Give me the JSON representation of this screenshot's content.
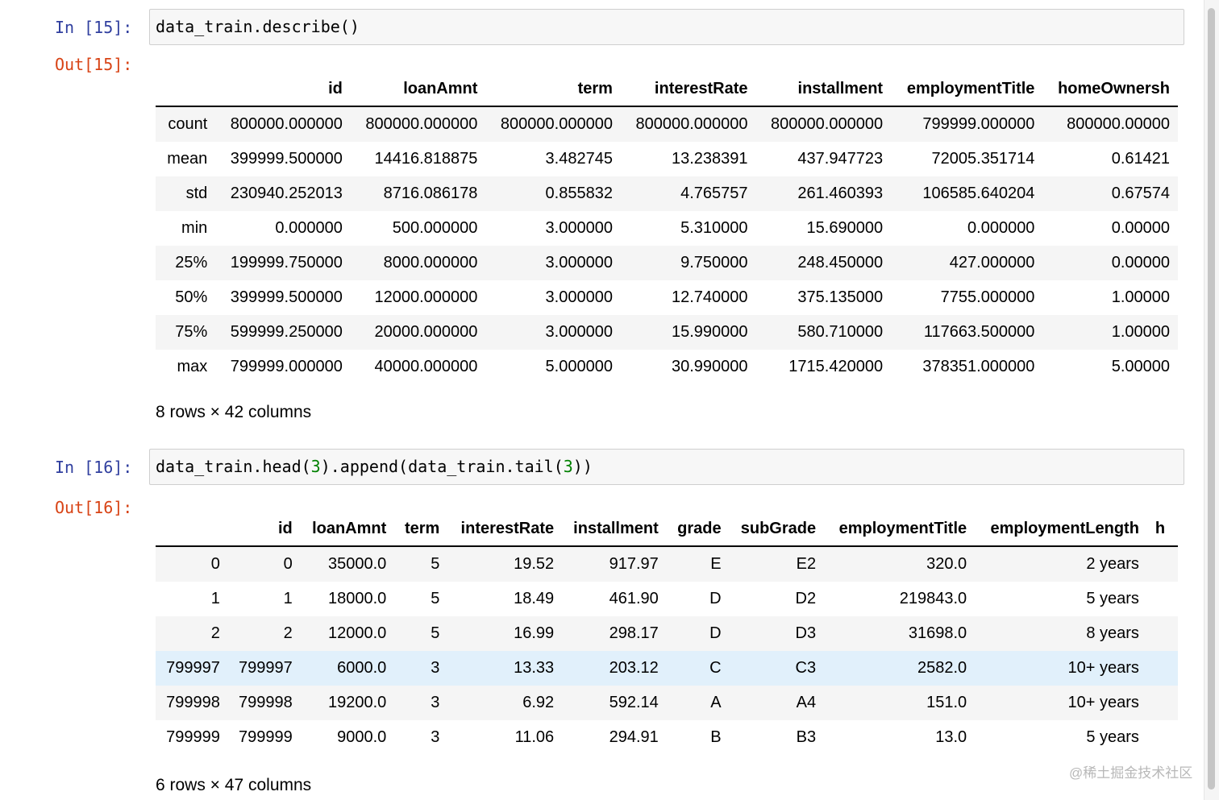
{
  "cell1": {
    "in_prompt": "In [15]:",
    "code": "data_train.describe()",
    "out_prompt": "Out[15]:",
    "columns": [
      "",
      "id",
      "loanAmnt",
      "term",
      "interestRate",
      "installment",
      "employmentTitle",
      "homeOwnersh"
    ],
    "rows": [
      [
        "count",
        "800000.000000",
        "800000.000000",
        "800000.000000",
        "800000.000000",
        "800000.000000",
        "799999.000000",
        "800000.00000"
      ],
      [
        "mean",
        "399999.500000",
        "14416.818875",
        "3.482745",
        "13.238391",
        "437.947723",
        "72005.351714",
        "0.61421"
      ],
      [
        "std",
        "230940.252013",
        "8716.086178",
        "0.855832",
        "4.765757",
        "261.460393",
        "106585.640204",
        "0.67574"
      ],
      [
        "min",
        "0.000000",
        "500.000000",
        "3.000000",
        "5.310000",
        "15.690000",
        "0.000000",
        "0.00000"
      ],
      [
        "25%",
        "199999.750000",
        "8000.000000",
        "3.000000",
        "9.750000",
        "248.450000",
        "427.000000",
        "0.00000"
      ],
      [
        "50%",
        "399999.500000",
        "12000.000000",
        "3.000000",
        "12.740000",
        "375.135000",
        "7755.000000",
        "1.00000"
      ],
      [
        "75%",
        "599999.250000",
        "20000.000000",
        "3.000000",
        "15.990000",
        "580.710000",
        "117663.500000",
        "1.00000"
      ],
      [
        "max",
        "799999.000000",
        "40000.000000",
        "5.000000",
        "30.990000",
        "1715.420000",
        "378351.000000",
        "5.00000"
      ]
    ],
    "shape_note": "8 rows × 42 columns"
  },
  "cell2": {
    "in_prompt": "In [16]:",
    "code_parts": [
      "data_train.head(",
      "3",
      ").append(data_train.tail(",
      "3",
      "))"
    ],
    "out_prompt": "Out[16]:",
    "columns": [
      "",
      "id",
      "loanAmnt",
      "term",
      "interestRate",
      "installment",
      "grade",
      "subGrade",
      "employmentTitle",
      "employmentLength",
      "h"
    ],
    "rows": [
      [
        "0",
        "0",
        "35000.0",
        "5",
        "19.52",
        "917.97",
        "E",
        "E2",
        "320.0",
        "2 years",
        ""
      ],
      [
        "1",
        "1",
        "18000.0",
        "5",
        "18.49",
        "461.90",
        "D",
        "D2",
        "219843.0",
        "5 years",
        ""
      ],
      [
        "2",
        "2",
        "12000.0",
        "5",
        "16.99",
        "298.17",
        "D",
        "D3",
        "31698.0",
        "8 years",
        ""
      ],
      [
        "799997",
        "799997",
        "6000.0",
        "3",
        "13.33",
        "203.12",
        "C",
        "C3",
        "2582.0",
        "10+ years",
        ""
      ],
      [
        "799998",
        "799998",
        "19200.0",
        "3",
        "6.92",
        "592.14",
        "A",
        "A4",
        "151.0",
        "10+ years",
        ""
      ],
      [
        "799999",
        "799999",
        "9000.0",
        "3",
        "11.06",
        "294.91",
        "B",
        "B3",
        "13.0",
        "5 years",
        ""
      ]
    ],
    "highlighted_row": 3,
    "shape_note": "6 rows × 47 columns"
  },
  "watermark": "@稀土掘金技术社区"
}
